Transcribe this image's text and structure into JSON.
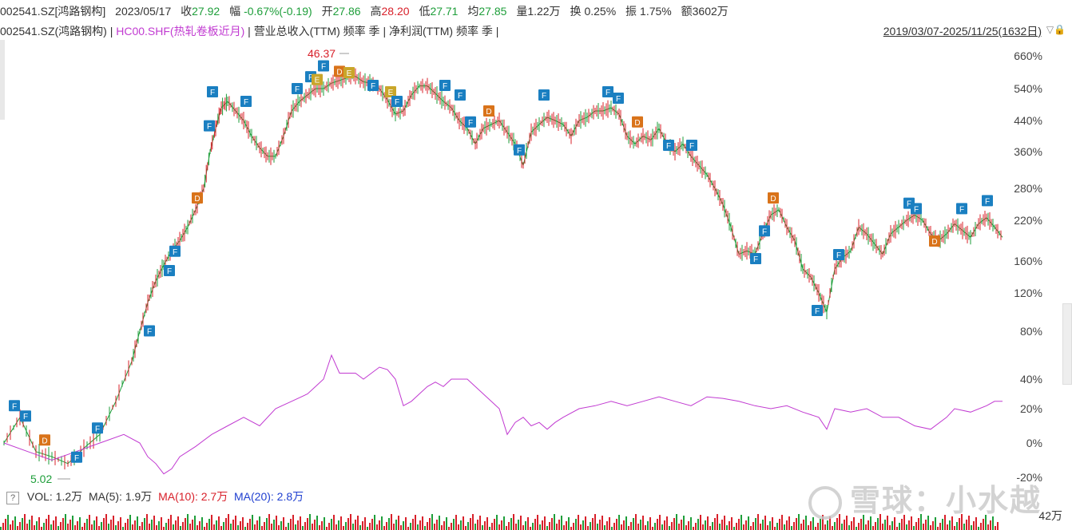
{
  "info_bar": {
    "symbol": "002541.SZ[鸿路钢构]",
    "date": "2023/05/17",
    "close_label": "收",
    "close": "27.92",
    "change_label": "幅",
    "change": "-0.67%(-0.19)",
    "open_label": "开",
    "open": "27.86",
    "high_label": "高",
    "high": "28.20",
    "low_label": "低",
    "low": "27.71",
    "avg_label": "均",
    "avg": "27.85",
    "volume_label": "量",
    "volume": "1.22万",
    "turnover_label": "换",
    "turnover": "0.25%",
    "amplitude_label": "振",
    "amplitude": "1.75%",
    "amount_label": "额",
    "amount": "3602万"
  },
  "legend": {
    "main": "002541.SZ(鸿路钢构)",
    "sep": "|",
    "compare": "HC00.SHF(热轧卷板近月)",
    "revenue": "营业总收入(TTM) 频率 季",
    "profit": "净利润(TTM) 频率 季"
  },
  "range_label": "2019/03/07-2025/11/25(1632日)",
  "volume_legend": {
    "help": "?",
    "vol": "VOL: 1.2万",
    "ma5": "MA(5): 1.9万",
    "ma10": "MA(10): 2.7万",
    "ma20": "MA(20): 2.8万",
    "axis_top": "42万"
  },
  "watermark": "雪球：小水越",
  "colors": {
    "up": "#d8202a",
    "down": "#1e9e3a",
    "compare": "#c13ad1",
    "marker_f": "#1a7fc1",
    "marker_d": "#d9731a",
    "marker_e": "#c9a62a",
    "ma20": "#1f3fd0"
  },
  "chart_data": {
    "type": "line",
    "x_range": [
      "2019/03/07",
      "2025/11/25"
    ],
    "y_ticks": [
      "660%",
      "540%",
      "440%",
      "360%",
      "280%",
      "220%",
      "160%",
      "120%",
      "80%",
      "40%",
      "20%",
      "0%",
      "-20%"
    ],
    "y_values": [
      660,
      540,
      440,
      360,
      280,
      220,
      160,
      120,
      80,
      40,
      20,
      0,
      -20
    ],
    "annotations": {
      "max_price": "46.37",
      "min_price": "5.02"
    },
    "series": [
      {
        "points": [
          [
            0,
            0
          ],
          [
            20,
            15
          ],
          [
            40,
            -5
          ],
          [
            60,
            -8
          ],
          [
            80,
            -12
          ],
          [
            100,
            -3
          ],
          [
            120,
            5
          ],
          [
            140,
            25
          ],
          [
            160,
            55
          ],
          [
            170,
            80
          ],
          [
            180,
            110
          ],
          [
            190,
            135
          ],
          [
            200,
            155
          ],
          [
            210,
            175
          ],
          [
            220,
            190
          ],
          [
            230,
            210
          ],
          [
            240,
            240
          ],
          [
            250,
            280
          ],
          [
            258,
            360
          ],
          [
            265,
            420
          ],
          [
            272,
            480
          ],
          [
            280,
            500
          ],
          [
            290,
            470
          ],
          [
            300,
            440
          ],
          [
            310,
            400
          ],
          [
            320,
            370
          ],
          [
            330,
            350
          ],
          [
            340,
            350
          ],
          [
            350,
            400
          ],
          [
            360,
            470
          ],
          [
            370,
            500
          ],
          [
            380,
            520
          ],
          [
            390,
            540
          ],
          [
            400,
            540
          ],
          [
            410,
            560
          ],
          [
            420,
            570
          ],
          [
            430,
            580
          ],
          [
            440,
            585
          ],
          [
            450,
            565
          ],
          [
            460,
            560
          ],
          [
            470,
            540
          ],
          [
            480,
            505
          ],
          [
            490,
            460
          ],
          [
            500,
            470
          ],
          [
            510,
            520
          ],
          [
            520,
            550
          ],
          [
            530,
            550
          ],
          [
            540,
            525
          ],
          [
            550,
            500
          ],
          [
            560,
            480
          ],
          [
            570,
            440
          ],
          [
            580,
            420
          ],
          [
            590,
            380
          ],
          [
            600,
            420
          ],
          [
            610,
            430
          ],
          [
            620,
            440
          ],
          [
            630,
            410
          ],
          [
            640,
            380
          ],
          [
            650,
            330
          ],
          [
            660,
            410
          ],
          [
            670,
            430
          ],
          [
            680,
            450
          ],
          [
            690,
            440
          ],
          [
            700,
            430
          ],
          [
            710,
            400
          ],
          [
            720,
            440
          ],
          [
            730,
            450
          ],
          [
            740,
            470
          ],
          [
            750,
            470
          ],
          [
            760,
            480
          ],
          [
            770,
            460
          ],
          [
            780,
            400
          ],
          [
            790,
            380
          ],
          [
            800,
            400
          ],
          [
            810,
            390
          ],
          [
            820,
            420
          ],
          [
            830,
            380
          ],
          [
            840,
            360
          ],
          [
            850,
            380
          ],
          [
            860,
            350
          ],
          [
            870,
            330
          ],
          [
            880,
            310
          ],
          [
            890,
            280
          ],
          [
            900,
            250
          ],
          [
            910,
            210
          ],
          [
            920,
            170
          ],
          [
            930,
            175
          ],
          [
            940,
            170
          ],
          [
            950,
            200
          ],
          [
            960,
            230
          ],
          [
            970,
            240
          ],
          [
            980,
            210
          ],
          [
            990,
            190
          ],
          [
            1000,
            150
          ],
          [
            1010,
            140
          ],
          [
            1020,
            120
          ],
          [
            1030,
            100
          ],
          [
            1040,
            150
          ],
          [
            1050,
            165
          ],
          [
            1060,
            175
          ],
          [
            1070,
            210
          ],
          [
            1080,
            200
          ],
          [
            1090,
            185
          ],
          [
            1100,
            170
          ],
          [
            1110,
            200
          ],
          [
            1120,
            210
          ],
          [
            1130,
            220
          ],
          [
            1140,
            230
          ],
          [
            1150,
            220
          ],
          [
            1160,
            200
          ],
          [
            1170,
            190
          ],
          [
            1180,
            200
          ],
          [
            1190,
            215
          ],
          [
            1200,
            205
          ],
          [
            1210,
            195
          ],
          [
            1220,
            215
          ],
          [
            1230,
            225
          ],
          [
            1240,
            210
          ],
          [
            1250,
            195
          ]
        ]
      },
      {
        "name": "HC00.SHF(热轧卷板近月)",
        "points": [
          [
            0,
            0
          ],
          [
            30,
            -5
          ],
          [
            60,
            -10
          ],
          [
            90,
            -5
          ],
          [
            120,
            0
          ],
          [
            150,
            5
          ],
          [
            170,
            0
          ],
          [
            180,
            -8
          ],
          [
            190,
            -12
          ],
          [
            200,
            -18
          ],
          [
            210,
            -15
          ],
          [
            220,
            -8
          ],
          [
            240,
            -2
          ],
          [
            260,
            5
          ],
          [
            280,
            10
          ],
          [
            300,
            15
          ],
          [
            320,
            10
          ],
          [
            340,
            20
          ],
          [
            360,
            25
          ],
          [
            380,
            30
          ],
          [
            390,
            35
          ],
          [
            400,
            40
          ],
          [
            410,
            60
          ],
          [
            420,
            45
          ],
          [
            430,
            45
          ],
          [
            440,
            45
          ],
          [
            450,
            40
          ],
          [
            460,
            45
          ],
          [
            470,
            50
          ],
          [
            480,
            48
          ],
          [
            490,
            40
          ],
          [
            500,
            22
          ],
          [
            510,
            25
          ],
          [
            520,
            30
          ],
          [
            530,
            35
          ],
          [
            540,
            38
          ],
          [
            550,
            35
          ],
          [
            560,
            40
          ],
          [
            570,
            40
          ],
          [
            580,
            40
          ],
          [
            590,
            35
          ],
          [
            600,
            30
          ],
          [
            610,
            25
          ],
          [
            620,
            20
          ],
          [
            630,
            5
          ],
          [
            640,
            12
          ],
          [
            650,
            15
          ],
          [
            660,
            10
          ],
          [
            670,
            12
          ],
          [
            680,
            8
          ],
          [
            690,
            12
          ],
          [
            700,
            15
          ],
          [
            720,
            20
          ],
          [
            740,
            22
          ],
          [
            760,
            25
          ],
          [
            780,
            22
          ],
          [
            800,
            25
          ],
          [
            820,
            28
          ],
          [
            840,
            25
          ],
          [
            860,
            22
          ],
          [
            880,
            28
          ],
          [
            900,
            27
          ],
          [
            920,
            25
          ],
          [
            940,
            22
          ],
          [
            960,
            20
          ],
          [
            980,
            22
          ],
          [
            1000,
            18
          ],
          [
            1020,
            15
          ],
          [
            1030,
            8
          ],
          [
            1040,
            20
          ],
          [
            1060,
            18
          ],
          [
            1080,
            20
          ],
          [
            1100,
            15
          ],
          [
            1120,
            15
          ],
          [
            1140,
            10
          ],
          [
            1160,
            8
          ],
          [
            1180,
            15
          ],
          [
            1190,
            20
          ],
          [
            1210,
            18
          ],
          [
            1230,
            22
          ],
          [
            1240,
            25
          ],
          [
            1250,
            25
          ]
        ]
      }
    ],
    "events": [
      {
        "type": "F",
        "x": 18,
        "y": 18
      },
      {
        "type": "F",
        "x": 32,
        "y": 12
      },
      {
        "type": "D",
        "x": 56,
        "y": -2
      },
      {
        "type": "F",
        "x": 96,
        "y": -12
      },
      {
        "type": "F",
        "x": 122,
        "y": 5
      },
      {
        "type": "F",
        "x": 187,
        "y": 75
      },
      {
        "type": "F",
        "x": 212,
        "y": 140
      },
      {
        "type": "F",
        "x": 219,
        "y": 165
      },
      {
        "type": "D",
        "x": 247,
        "y": 250
      },
      {
        "type": "F",
        "x": 262,
        "y": 410
      },
      {
        "type": "F",
        "x": 266,
        "y": 510
      },
      {
        "type": "F",
        "x": 308,
        "y": 480
      },
      {
        "type": "F",
        "x": 372,
        "y": 520
      },
      {
        "type": "F",
        "x": 389,
        "y": 560
      },
      {
        "type": "E",
        "x": 397,
        "y": 550
      },
      {
        "type": "F",
        "x": 405,
        "y": 600
      },
      {
        "type": "D",
        "x": 425,
        "y": 580
      },
      {
        "type": "E",
        "x": 437,
        "y": 575
      },
      {
        "type": "F",
        "x": 467,
        "y": 530
      },
      {
        "type": "E",
        "x": 489,
        "y": 510
      },
      {
        "type": "F",
        "x": 497,
        "y": 480
      },
      {
        "type": "F",
        "x": 557,
        "y": 530
      },
      {
        "type": "F",
        "x": 576,
        "y": 500
      },
      {
        "type": "F",
        "x": 589,
        "y": 420
      },
      {
        "type": "D",
        "x": 612,
        "y": 450
      },
      {
        "type": "F",
        "x": 650,
        "y": 350
      },
      {
        "type": "F",
        "x": 681,
        "y": 500
      },
      {
        "type": "F",
        "x": 761,
        "y": 510
      },
      {
        "type": "F",
        "x": 774,
        "y": 490
      },
      {
        "type": "D",
        "x": 798,
        "y": 420
      },
      {
        "type": "F",
        "x": 837,
        "y": 360
      },
      {
        "type": "F",
        "x": 866,
        "y": 360
      },
      {
        "type": "D",
        "x": 968,
        "y": 250
      },
      {
        "type": "F",
        "x": 957,
        "y": 195
      },
      {
        "type": "F",
        "x": 946,
        "y": 155
      },
      {
        "type": "F",
        "x": 1023,
        "y": 95
      },
      {
        "type": "F",
        "x": 1050,
        "y": 160
      },
      {
        "type": "F",
        "x": 1138,
        "y": 240
      },
      {
        "type": "F",
        "x": 1147,
        "y": 230
      },
      {
        "type": "D",
        "x": 1170,
        "y": 180
      },
      {
        "type": "F",
        "x": 1204,
        "y": 230
      },
      {
        "type": "F",
        "x": 1236,
        "y": 245
      }
    ]
  }
}
